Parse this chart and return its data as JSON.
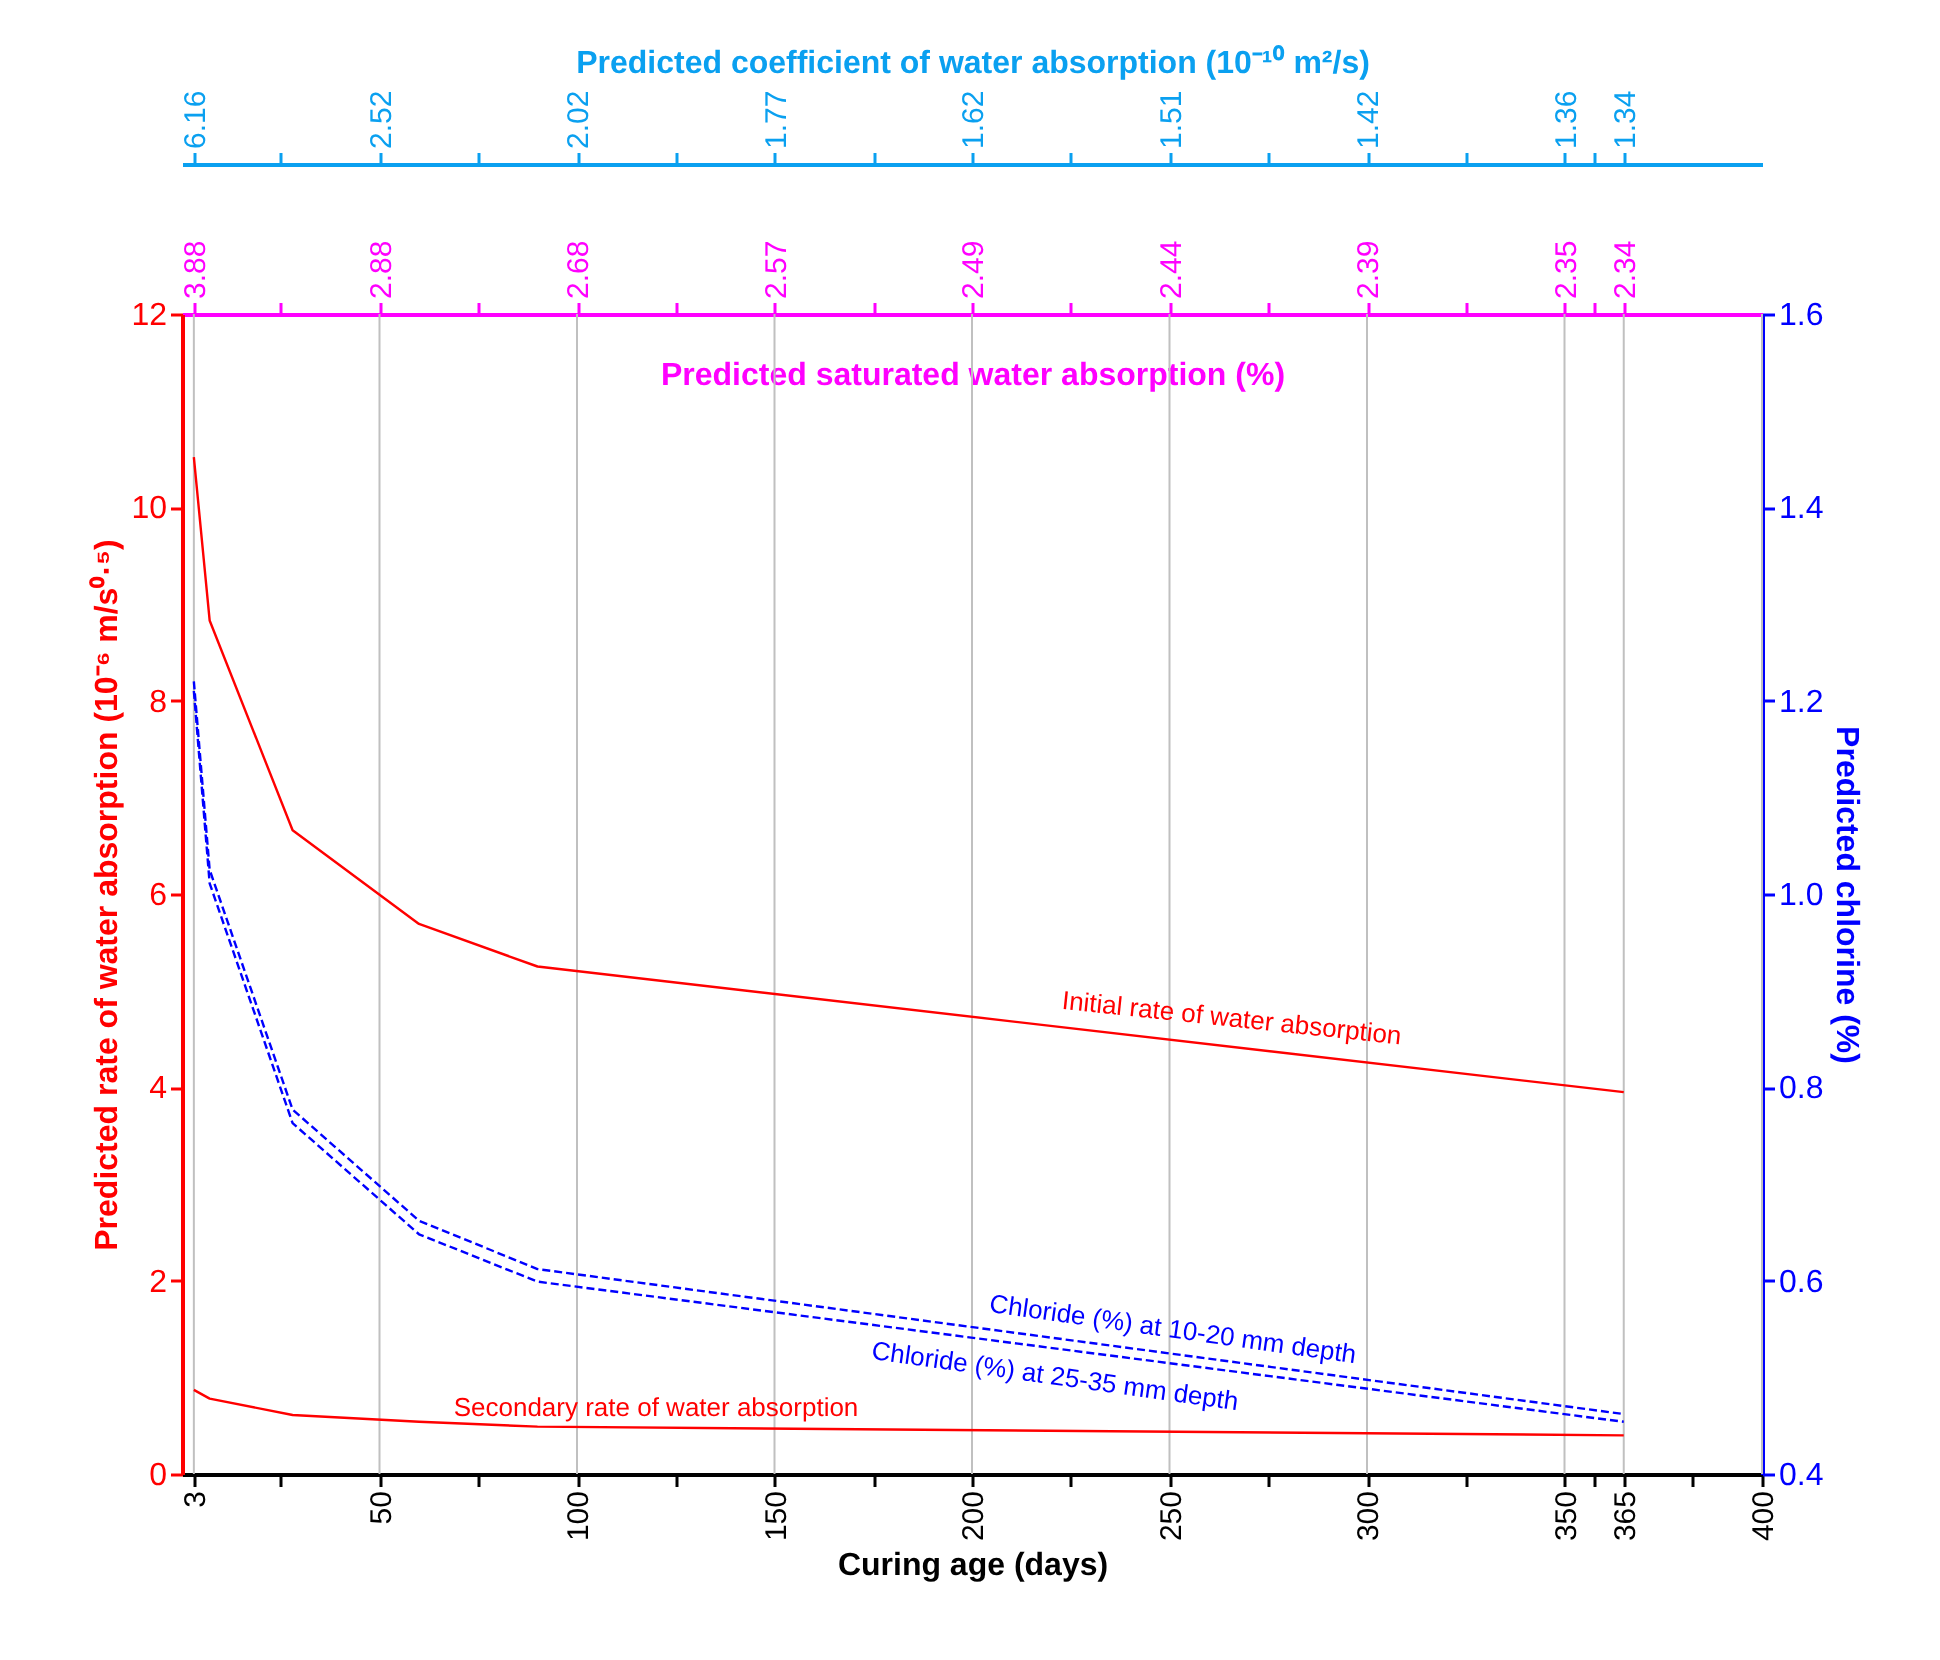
{
  "chart_data": {
    "type": "line",
    "xlabel": "Curing age (days)",
    "ylabel": "Predicted rate of water absorption (10⁻⁶ m/s⁰·⁵)",
    "y2label": "Predicted chlorine (%)",
    "x2label": "Predicted saturated water absorption (%)",
    "annotations": [
      "3.88",
      "2.88",
      "2.68",
      "2.57",
      "2.49",
      "2.44",
      "2.39",
      "2.35",
      "2.34",
      "Predicted coefficient of water absorption (10⁻¹⁰ m²/s)",
      "6.16",
      "2.52",
      "2.02",
      "1.77",
      "1.62",
      "1.51",
      "1.42",
      "1.36",
      "1.34"
    ],
    "xlim": [
      0,
      400
    ],
    "xticks": [
      3,
      {
        "value": 25,
        "label": null
      },
      50,
      {
        "value": 75,
        "label": null
      },
      100,
      {
        "value": 125,
        "label": null
      },
      150,
      {
        "value": 175,
        "label": null
      },
      200,
      {
        "value": 225,
        "label": null
      },
      250,
      {
        "value": 275,
        "label": null
      },
      300,
      {
        "value": 325,
        "label": null
      },
      350,
      {
        "value": 357.5,
        "label": null
      },
      365,
      {
        "value": 382.5,
        "label": null
      },
      400
    ],
    "ylim": [
      0,
      12
    ],
    "yticks": [
      0,
      2,
      4,
      6,
      8,
      10,
      12
    ],
    "y2lim": [
      0.4,
      1.6
    ],
    "y2ticks": [
      0.4,
      0.6,
      0.8,
      {
        "value": 1.0,
        "label": "1.0"
      },
      1.2,
      1.4,
      1.6
    ],
    "grid": "x",
    "series": [
      {
        "name": "Initial rate of water absorption",
        "color": "#ff0000",
        "line_style": "solid",
        "x": [
          3,
          7,
          28,
          60,
          90,
          365
        ],
        "values": [
          10.52,
          8.83,
          6.66,
          5.69,
          5.25,
          3.95
        ]
      },
      {
        "name": "Secondary rate of water absorption",
        "color": "#ff0000",
        "line_style": "solid",
        "x": [
          3,
          7,
          28,
          60,
          90,
          365
        ],
        "values": [
          0.87,
          0.78,
          0.61,
          0.54,
          0.49,
          0.4
        ]
      },
      {
        "name": "Chloride (%) at 10-20 mm depth",
        "color": "#0000ff",
        "line_style": "dashed",
        "axis": "y2",
        "x": [
          3,
          7,
          28,
          60,
          90,
          365
        ],
        "values": [
          1.22,
          1.025,
          0.777,
          0.662,
          0.612,
          0.462
        ]
      },
      {
        "name": "Chloride (%) at 25-35 mm depth",
        "color": "#0000ff",
        "line_style": "dashed",
        "axis": "y2",
        "x": [
          3,
          7,
          28,
          60,
          90,
          365
        ],
        "values": [
          1.21,
          1.011,
          0.763,
          0.648,
          0.599,
          0.454
        ]
      }
    ]
  }
}
